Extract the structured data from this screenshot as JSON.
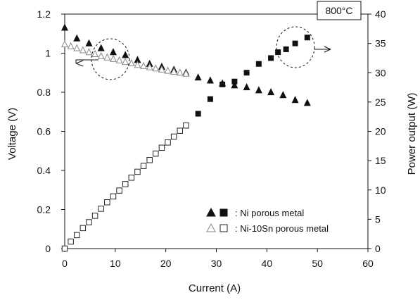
{
  "chart_data": {
    "type": "scatter",
    "title": "",
    "xlabel": "Current (A)",
    "ylabel_left": "Voltage (V)",
    "ylabel_right": "Power output (W)",
    "xlim": [
      0,
      60
    ],
    "ylim_left": [
      0,
      1.2
    ],
    "ylim_right": [
      0,
      40
    ],
    "x_ticks": [
      "0",
      "10",
      "20",
      "30",
      "40",
      "50",
      "60"
    ],
    "y_left_ticks": [
      "0",
      "0.2",
      "0.4",
      "0.6",
      "0.8",
      "1",
      "1.2"
    ],
    "y_right_ticks": [
      "0",
      "5",
      "10",
      "15",
      "20",
      "25",
      "30",
      "35",
      "40"
    ],
    "grid": false,
    "legend_position": "bottom-right",
    "annotation": "800°C",
    "series": [
      {
        "name": "Ni porous metal",
        "axis": "left",
        "marker": "filled-triangle",
        "color": "#111111",
        "x": [
          0,
          2.4,
          4.8,
          7.2,
          9.6,
          12,
          14.4,
          16.8,
          19.2,
          21.6,
          24,
          26.4,
          28.8,
          31.2,
          33.6,
          36,
          38.4,
          40.8,
          43.2,
          45.6,
          48
        ],
        "y": [
          1.13,
          1.075,
          1.05,
          1.025,
          1.005,
          0.99,
          0.965,
          0.945,
          0.93,
          0.915,
          0.9,
          0.875,
          0.86,
          0.845,
          0.835,
          0.825,
          0.81,
          0.8,
          0.785,
          0.76,
          0.745
        ]
      },
      {
        "name": "Ni porous metal",
        "axis": "right",
        "marker": "filled-square",
        "color": "#111111",
        "x": [
          26.4,
          28.8,
          31.2,
          33.6,
          36,
          38.4,
          40.8,
          42.2,
          43.8,
          45.6,
          48
        ],
        "y": [
          23,
          25.5,
          28,
          28.5,
          30,
          31.5,
          32.5,
          33.5,
          34,
          35,
          36
        ]
      },
      {
        "name": "Ni-10Sn porous metal",
        "axis": "left",
        "marker": "open-triangle",
        "color": "#888888",
        "x": [
          0,
          1.2,
          2.4,
          3.6,
          4.8,
          6,
          7.2,
          8.4,
          9.6,
          10.8,
          12,
          13.2,
          14.4,
          15.6,
          16.8,
          18,
          19.2,
          20.4,
          21.6,
          22.8,
          24
        ],
        "y": [
          1.045,
          1.035,
          1.025,
          1.015,
          1.005,
          0.995,
          0.985,
          0.978,
          0.97,
          0.963,
          0.955,
          0.948,
          0.94,
          0.934,
          0.928,
          0.922,
          0.916,
          0.91,
          0.905,
          0.9,
          0.895
        ]
      },
      {
        "name": "Ni-10Sn porous metal",
        "axis": "right",
        "marker": "open-square",
        "color": "#222222",
        "x": [
          0,
          1.2,
          2.4,
          3.6,
          4.8,
          6,
          7.2,
          8.4,
          9.6,
          10.8,
          12,
          13.2,
          14.4,
          15.6,
          16.8,
          18,
          19.2,
          20.4,
          21.6,
          22.8,
          24
        ],
        "y": [
          0,
          1.2,
          2.3,
          3.5,
          4.5,
          5.6,
          6.8,
          7.9,
          8.9,
          9.9,
          11,
          12.1,
          13.1,
          14.1,
          15.1,
          16.2,
          17.2,
          18.1,
          19.1,
          20.1,
          21
        ]
      }
    ],
    "legend": [
      {
        "label": ": Ni porous metal",
        "symbols": [
          "filled-triangle",
          "filled-square"
        ]
      },
      {
        "label": ": Ni-10Sn porous metal",
        "symbols": [
          "open-triangle",
          "open-square"
        ]
      }
    ]
  }
}
